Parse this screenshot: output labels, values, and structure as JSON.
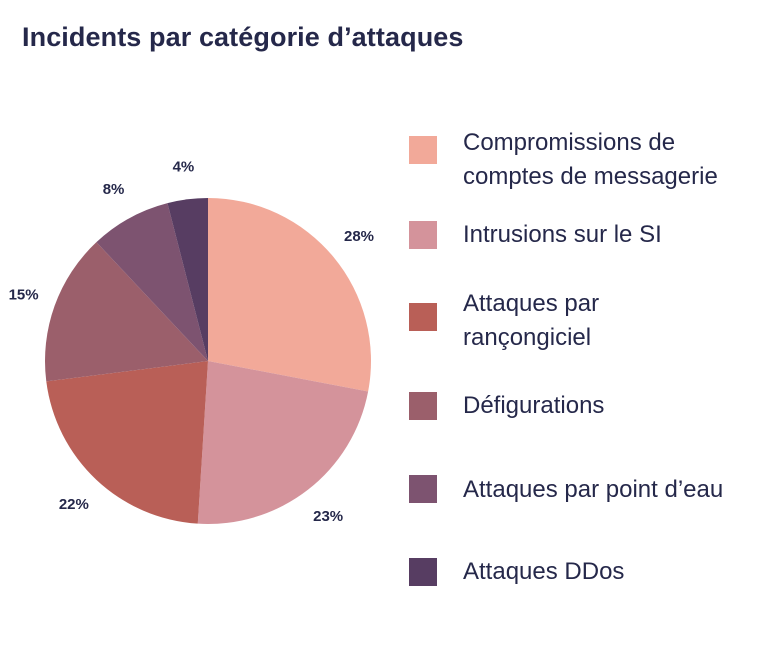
{
  "chart_data": {
    "type": "pie",
    "title": "Incidents par catégorie d’attaques",
    "slices": [
      {
        "label": "Compromissions de\ncomptes de messagerie",
        "value": 28,
        "display": "28%",
        "color": "#f2a999"
      },
      {
        "label": "Intrusions sur le SI",
        "value": 23,
        "display": "23%",
        "color": "#d4939b"
      },
      {
        "label": "Attaques par\nrançongiciel",
        "value": 22,
        "display": "22%",
        "color": "#b95f57"
      },
      {
        "label": "Défigurations",
        "value": 15,
        "display": "15%",
        "color": "#9b5f6b"
      },
      {
        "label": "Attaques par point d’eau",
        "value": 8,
        "display": "8%",
        "color": "#7d5370"
      },
      {
        "label": "Attaques DDos",
        "value": 4,
        "display": "4%",
        "color": "#573d62"
      }
    ],
    "legend_position": "right"
  }
}
